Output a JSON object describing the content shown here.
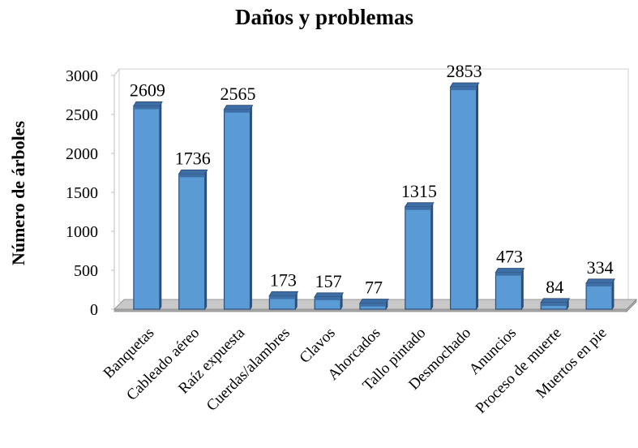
{
  "chart_data": {
    "type": "bar",
    "title": "Daños y problemas",
    "xlabel": "",
    "ylabel": "Número de árboles",
    "ylim": [
      0,
      3000
    ],
    "yticks": [
      0,
      500,
      1000,
      1500,
      2000,
      2500,
      3000
    ],
    "categories": [
      "Banquetas",
      "Cableado aéreo",
      "Raíz expuesta",
      "Cuerdas/alambres",
      "Clavos",
      "Ahorcados",
      "Tallo pintado",
      "Desmochado",
      "Anuncios",
      "Proceso de muerte",
      "Muertos en pie"
    ],
    "values": [
      2609,
      1736,
      2565,
      173,
      157,
      77,
      1315,
      2853,
      473,
      84,
      334
    ],
    "grid": false,
    "legend": "none",
    "style": "3d-column",
    "colors": {
      "bar_front": "#5b9bd5",
      "bar_top": "#3d6fa6",
      "bar_edge": "#2f4f7a",
      "wall": "#ffffff",
      "floor_top": "#c8c8c8",
      "floor_front": "#a6a6a6"
    }
  }
}
